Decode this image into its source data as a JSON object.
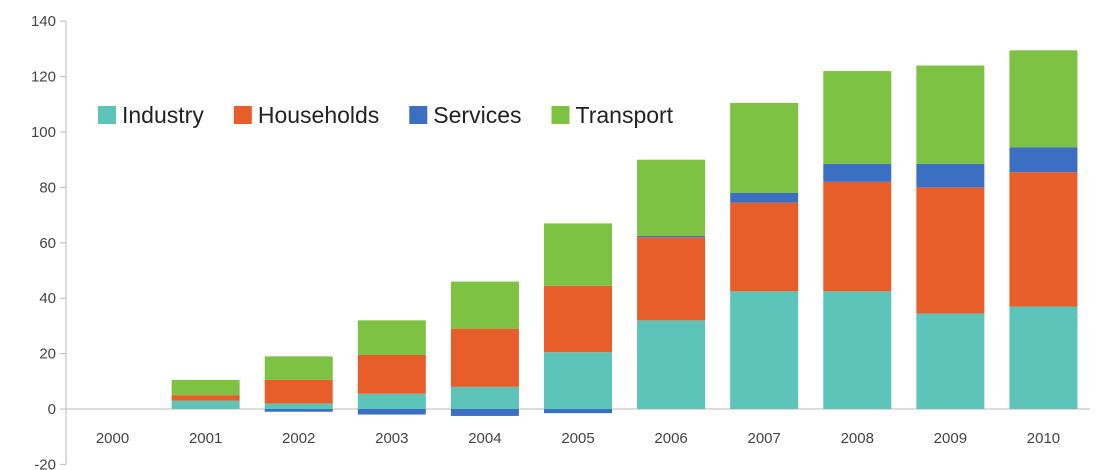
{
  "chart_data": {
    "type": "bar",
    "stacked": true,
    "title": "",
    "xlabel": "",
    "ylabel": "",
    "categories": [
      "2000",
      "2001",
      "2002",
      "2003",
      "2004",
      "2005",
      "2006",
      "2007",
      "2008",
      "2009",
      "2010"
    ],
    "ylim": [
      -20,
      140
    ],
    "yticks": [
      -20,
      0,
      20,
      40,
      60,
      80,
      100,
      120,
      140
    ],
    "grid": false,
    "legend_position": "top-left",
    "series": [
      {
        "name": "Industry",
        "color": "#5cc4b8",
        "values": [
          0,
          3,
          2,
          5.5,
          8,
          20.5,
          32,
          42.5,
          42.5,
          34.5,
          37
        ]
      },
      {
        "name": "Households",
        "color": "#e85e2a",
        "values": [
          0,
          2,
          8.5,
          14,
          21,
          24,
          30,
          32,
          39.5,
          45.5,
          48.5
        ]
      },
      {
        "name": "Services",
        "color": "#3a6fc4",
        "values": [
          0,
          0,
          -1,
          -2,
          -2.5,
          -1.5,
          0.5,
          3.5,
          6.5,
          8.5,
          9
        ]
      },
      {
        "name": "Transport",
        "color": "#7dc242",
        "values": [
          0,
          5.5,
          8.5,
          12.5,
          17,
          22.5,
          27.5,
          32.5,
          33.5,
          35.5,
          35
        ]
      }
    ]
  }
}
